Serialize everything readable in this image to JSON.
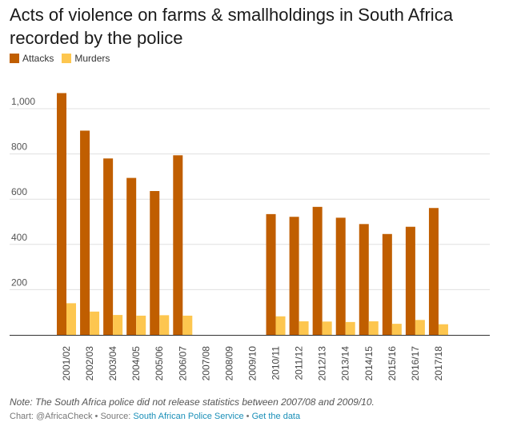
{
  "chart_data": {
    "type": "bar",
    "title": "Acts of violence on farms & smallholdings in South Africa recorded by the police",
    "xlabel": "",
    "ylabel": "",
    "ylim": [
      0,
      1080
    ],
    "yticks": [
      200,
      400,
      600,
      800,
      1000
    ],
    "ytick_labels": [
      "200",
      "400",
      "600",
      "800",
      "1,000"
    ],
    "grid": true,
    "legend_position": "top-left",
    "categories": [
      "2001/02",
      "2002/03",
      "2003/04",
      "2004/05",
      "2005/06",
      "2006/07",
      "2007/08",
      "2008/09",
      "2009/10",
      "2010/11",
      "2011/12",
      "2012/13",
      "2013/14",
      "2014/15",
      "2015/16",
      "2016/17",
      "2017/18"
    ],
    "series": [
      {
        "name": "Attacks",
        "color": "#c05e00",
        "values": [
          1069,
          903,
          780,
          694,
          636,
          794,
          null,
          null,
          null,
          534,
          522,
          566,
          518,
          490,
          446,
          478,
          561
        ]
      },
      {
        "name": "Murders",
        "color": "#fdc64f",
        "values": [
          140,
          103,
          88,
          85,
          87,
          85,
          null,
          null,
          null,
          82,
          60,
          59,
          57,
          60,
          49,
          66,
          47
        ]
      }
    ]
  },
  "note": "Note: The South Africa police did not release statistics between 2007/08 and 2009/10.",
  "credit": {
    "prefix": "Chart: @AfricaCheck • Source: ",
    "source_link": "South African Police Service",
    "separator": " • ",
    "data_link": "Get the data"
  }
}
